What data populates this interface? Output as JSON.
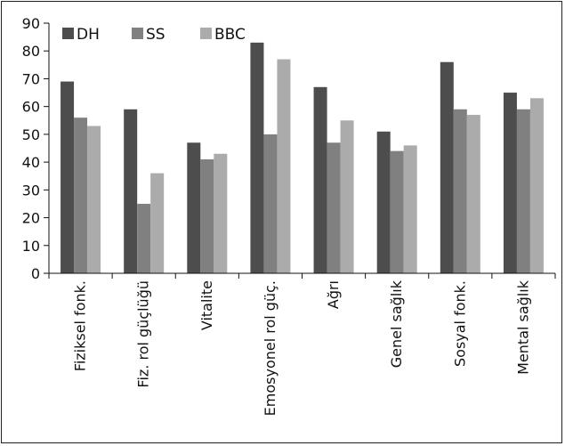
{
  "chart_data": {
    "type": "bar",
    "categories": [
      "Fiziksel fonk.",
      "Fiz. rol güçlüğü",
      "Vitalite",
      "Emosyonel rol güç.",
      "Ağrı",
      "Genel sağlık",
      "Sosyal fonk.",
      "Mental sağlık"
    ],
    "series": [
      {
        "name": "DH",
        "color": "#4d4d4d",
        "values": [
          69,
          59,
          47,
          83,
          67,
          51,
          76,
          65
        ]
      },
      {
        "name": "SS",
        "color": "#808080",
        "values": [
          56,
          25,
          41,
          50,
          47,
          44,
          59,
          59
        ]
      },
      {
        "name": "BBC",
        "color": "#ababab",
        "values": [
          53,
          36,
          43,
          77,
          55,
          46,
          57,
          63
        ]
      }
    ],
    "ylim": [
      0,
      90
    ],
    "yticks": [
      0,
      10,
      20,
      30,
      40,
      50,
      60,
      70,
      80,
      90
    ],
    "legend_position": "top-left",
    "grid": false
  }
}
